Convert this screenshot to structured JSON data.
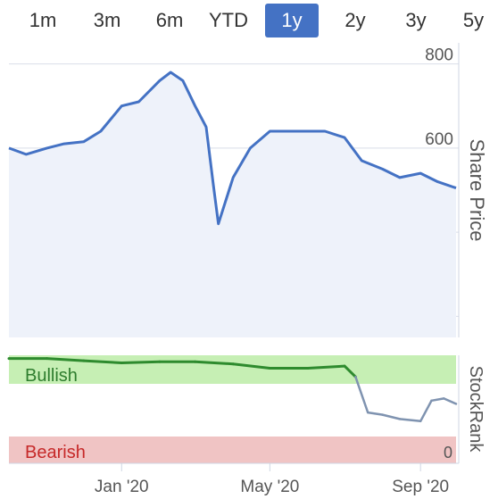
{
  "range_tabs": [
    {
      "label": "1m",
      "active": false
    },
    {
      "label": "3m",
      "active": false
    },
    {
      "label": "6m",
      "active": false
    },
    {
      "label": "YTD",
      "active": false
    },
    {
      "label": "1y",
      "active": true
    },
    {
      "label": "2y",
      "active": false
    },
    {
      "label": "3y",
      "active": false
    },
    {
      "label": "5y",
      "active": false
    }
  ],
  "price_panel": {
    "axis_label": "Share Price"
  },
  "rank_panel": {
    "axis_label": "StockRank",
    "bullish_label": "Bullish",
    "bearish_label": "Bearish",
    "zero_label": "0"
  },
  "colors": {
    "accent": "#4472c4",
    "price_line": "#4472c4",
    "bullish_zone": "#c6efb4",
    "bearish_zone": "#f0c4c4",
    "rank_bullish": "#2e8b2e",
    "rank_neutral": "#7f93b0"
  },
  "chart_data": [
    {
      "type": "line",
      "title": "",
      "xlabel": "",
      "ylabel": "Share Price",
      "ylim": [
        150,
        850
      ],
      "yticks": [
        200,
        400,
        600,
        800
      ],
      "x_ticks": [
        "Jan '20",
        "May '20",
        "Sep '20"
      ],
      "x": [
        "2019-10-01",
        "2019-10-15",
        "2019-11-01",
        "2019-11-15",
        "2019-12-01",
        "2019-12-15",
        "2020-01-01",
        "2020-01-15",
        "2020-02-01",
        "2020-02-10",
        "2020-02-20",
        "2020-03-01",
        "2020-03-10",
        "2020-03-16",
        "2020-03-20",
        "2020-04-01",
        "2020-04-15",
        "2020-05-01",
        "2020-05-15",
        "2020-06-01",
        "2020-06-15",
        "2020-07-01",
        "2020-07-15",
        "2020-08-01",
        "2020-08-15",
        "2020-09-01",
        "2020-09-15",
        "2020-09-30"
      ],
      "series": [
        {
          "values": [
            600,
            585,
            600,
            610,
            615,
            640,
            700,
            710,
            760,
            780,
            760,
            700,
            650,
            510,
            420,
            530,
            600,
            640,
            640,
            640,
            640,
            625,
            570,
            550,
            530,
            540,
            520,
            505
          ]
        }
      ]
    },
    {
      "type": "line",
      "ylabel": "StockRank",
      "ylim": [
        0,
        100
      ],
      "x": [
        "2019-10-01",
        "2019-11-01",
        "2019-12-01",
        "2020-01-01",
        "2020-02-01",
        "2020-03-01",
        "2020-04-01",
        "2020-05-01",
        "2020-06-01",
        "2020-07-01",
        "2020-07-10",
        "2020-07-20",
        "2020-08-01",
        "2020-08-15",
        "2020-09-01",
        "2020-09-10",
        "2020-09-20",
        "2020-09-30"
      ],
      "series": [
        {
          "values": [
            97,
            97,
            95,
            93,
            94,
            94,
            92,
            88,
            88,
            90,
            80,
            47,
            45,
            41,
            39,
            58,
            60,
            55
          ]
        }
      ]
    }
  ]
}
